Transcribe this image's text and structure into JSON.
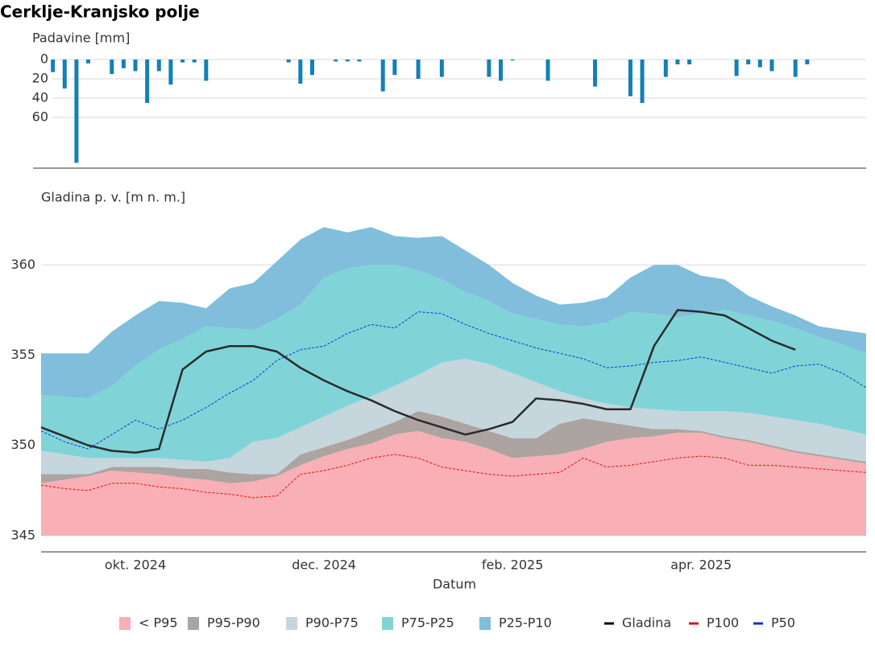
{
  "title": "Cerklje-Kranjsko polje",
  "chart_data": [
    {
      "type": "bar",
      "title": "Padavine [mm]",
      "inverted": true,
      "color": "#1380b8",
      "grid": true,
      "ylim": [
        0,
        112.5
      ],
      "yticks": [
        0,
        20,
        40,
        60
      ],
      "values": [
        0,
        13,
        30,
        107,
        4,
        0,
        15,
        9,
        12,
        45,
        12,
        26,
        3,
        3,
        22,
        0,
        0,
        0,
        0,
        0,
        0,
        3,
        25,
        16,
        0,
        2,
        2,
        2,
        0,
        33,
        16,
        0,
        20,
        0,
        18,
        0,
        0,
        0,
        18,
        22,
        1,
        0,
        0,
        22,
        0,
        0,
        0,
        28,
        0,
        0,
        38,
        45,
        0,
        18,
        5,
        5,
        0,
        0,
        0,
        17,
        5,
        8,
        12,
        0,
        18,
        5,
        0,
        0,
        0,
        0,
        0
      ]
    },
    {
      "type": "area",
      "title": "Gladina p. v. [m n. m.]",
      "xlabel": "Datum",
      "grid": true,
      "legend": "bottom",
      "ylim": [
        344.1,
        363
      ],
      "yticks": [
        345,
        350,
        355,
        360
      ],
      "categories": [
        null,
        null,
        null,
        null,
        "okt. 2024",
        null,
        null,
        null,
        null,
        null,
        null,
        null,
        "dec. 2024",
        null,
        null,
        null,
        null,
        null,
        null,
        null,
        "feb. 2025",
        null,
        null,
        null,
        null,
        null,
        null,
        null,
        "apr. 2025",
        null,
        null,
        null,
        null,
        null,
        null,
        null
      ],
      "series": [
        {
          "name": "< P95",
          "style": "area",
          "color": "#f8afb5",
          "values": [
            2.9,
            3.1,
            3.3,
            3.6,
            3.5,
            3.4,
            3.2,
            3.1,
            2.9,
            3.0,
            3.3,
            3.9,
            4.4,
            4.8,
            5.1,
            5.6,
            5.8,
            5.4,
            5.2,
            4.8,
            4.3,
            4.4,
            4.5,
            4.8,
            5.2,
            5.4,
            5.5,
            5.7,
            5.7,
            5.4,
            5.2,
            4.9,
            4.6,
            4.4,
            4.2,
            4.0
          ]
        },
        {
          "name": "P95-P90",
          "style": "area",
          "color": "#aca4a1",
          "values": [
            0.5,
            0.3,
            0.1,
            0.2,
            0.3,
            0.4,
            0.5,
            0.6,
            0.6,
            0.4,
            0.1,
            0.6,
            0.5,
            0.5,
            0.7,
            0.7,
            1.1,
            1.2,
            1.0,
            1.0,
            1.1,
            1.0,
            1.7,
            1.7,
            1.1,
            0.7,
            0.4,
            0.2,
            0.1,
            0.1,
            0.1,
            0.1,
            0.1,
            0.1,
            0.1,
            0.1
          ]
        },
        {
          "name": "P90-P75",
          "style": "area",
          "color": "#c6d6dd",
          "values": [
            1.3,
            1.1,
            0.9,
            0.5,
            0.5,
            0.5,
            0.5,
            0.4,
            0.8,
            1.8,
            2.0,
            1.5,
            1.7,
            1.9,
            1.9,
            2.0,
            2.0,
            3.0,
            3.6,
            3.7,
            3.6,
            3.1,
            1.8,
            1.1,
            1.0,
            1.0,
            1.1,
            1.0,
            1.1,
            1.4,
            1.5,
            1.6,
            1.7,
            1.7,
            1.6,
            1.5
          ]
        },
        {
          "name": "P75-P25",
          "style": "area",
          "color": "#80d4d8",
          "values": [
            3.1,
            3.2,
            3.3,
            4.0,
            5.1,
            6.0,
            6.7,
            7.5,
            7.2,
            6.2,
            6.6,
            6.8,
            7.7,
            7.6,
            7.3,
            6.7,
            5.8,
            4.6,
            3.7,
            3.5,
            3.3,
            3.5,
            3.7,
            4.0,
            4.5,
            5.3,
            5.3,
            5.2,
            5.4,
            5.6,
            5.4,
            5.3,
            5.1,
            4.8,
            4.7,
            4.5
          ]
        },
        {
          "name": "P25-P10",
          "style": "area",
          "color": "#80bedc",
          "values": [
            2.3,
            2.4,
            2.5,
            3.0,
            2.8,
            2.7,
            2.0,
            1.0,
            2.2,
            2.6,
            3.2,
            3.6,
            2.8,
            2.0,
            2.1,
            1.6,
            1.8,
            2.4,
            2.3,
            2.0,
            1.7,
            1.3,
            1.1,
            1.3,
            1.4,
            1.9,
            2.7,
            2.9,
            2.1,
            1.7,
            1.1,
            0.8,
            0.7,
            0.6,
            0.8,
            1.1
          ]
        },
        {
          "name": "Gladina",
          "style": "line",
          "color": "#2b2b2b",
          "values": [
            351.0,
            350.5,
            350.0,
            349.7,
            349.6,
            349.8,
            354.2,
            355.2,
            355.5,
            355.5,
            355.2,
            354.3,
            353.6,
            353.0,
            352.5,
            351.9,
            351.4,
            351.0,
            350.6,
            350.9,
            351.3,
            352.6,
            352.5,
            352.3,
            352.0,
            352.0,
            355.5,
            357.5,
            357.4,
            357.2,
            356.5,
            355.8,
            355.3,
            null,
            null,
            null
          ]
        },
        {
          "name": "P100",
          "style": "dashed",
          "color": "#e01010",
          "values": [
            347.8,
            347.6,
            347.5,
            347.9,
            347.9,
            347.7,
            347.6,
            347.4,
            347.3,
            347.1,
            347.2,
            348.4,
            348.6,
            348.9,
            349.3,
            349.5,
            349.3,
            348.8,
            348.6,
            348.4,
            348.3,
            348.4,
            348.5,
            349.3,
            348.8,
            348.9,
            349.1,
            349.3,
            349.4,
            349.3,
            348.9,
            348.9,
            348.8,
            348.7,
            348.6,
            348.5
          ]
        },
        {
          "name": "P50",
          "style": "dashed",
          "color": "#1030d0",
          "values": [
            350.8,
            350.2,
            349.8,
            350.6,
            351.4,
            350.9,
            351.4,
            352.1,
            352.9,
            353.6,
            354.7,
            355.3,
            355.5,
            356.2,
            356.7,
            356.5,
            357.4,
            357.3,
            356.7,
            356.2,
            355.8,
            355.4,
            355.1,
            354.8,
            354.3,
            354.4,
            354.6,
            354.7,
            354.9,
            354.6,
            354.3,
            354.0,
            354.4,
            354.5,
            354.0,
            353.2
          ]
        }
      ]
    }
  ]
}
